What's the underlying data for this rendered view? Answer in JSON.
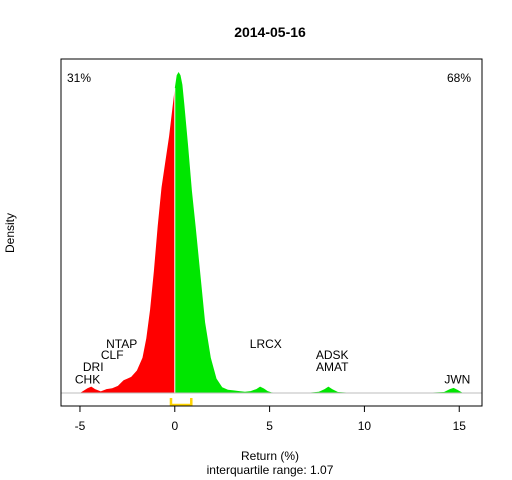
{
  "chart_data": {
    "type": "area",
    "title": "2014-05-16",
    "xlabel": "Return (%)",
    "subtitle": "interquartile range: 1.07",
    "ylabel": "Density",
    "xlim": [
      -6.0,
      16.2
    ],
    "ylim": [
      0,
      1.0
    ],
    "x_ticks": [
      -5,
      0,
      5,
      10,
      15
    ],
    "negative_pct_label": "31%",
    "positive_pct_label": "68%",
    "colors": {
      "negative": "#ff0000",
      "positive": "#00e600",
      "negative_label": "#e00000",
      "positive_label": "#009900",
      "iqr": "#ffd400",
      "baseline": "#bebebe"
    },
    "iqr": [
      -0.2,
      0.87
    ],
    "density": {
      "x": [
        -5.0,
        -4.6,
        -4.4,
        -4.2,
        -3.9,
        -3.6,
        -3.3,
        -3.0,
        -2.7,
        -2.5,
        -2.3,
        -2.0,
        -1.7,
        -1.5,
        -1.3,
        -1.1,
        -0.9,
        -0.7,
        -0.5,
        -0.3,
        -0.1,
        0.0,
        0.1,
        0.2,
        0.3,
        0.4,
        0.5,
        0.7,
        0.9,
        1.1,
        1.3,
        1.6,
        1.9,
        2.2,
        2.5,
        2.8,
        3.1,
        3.4,
        3.7,
        4.0,
        4.3,
        4.5,
        4.7,
        4.9,
        5.1,
        5.4,
        6.0,
        7.0,
        7.6,
        7.9,
        8.1,
        8.3,
        8.6,
        9.5,
        11.0,
        13.0,
        14.2,
        14.5,
        14.7,
        14.9,
        15.2
      ],
      "y": [
        0.0,
        0.015,
        0.02,
        0.012,
        0.005,
        0.012,
        0.015,
        0.022,
        0.04,
        0.045,
        0.05,
        0.07,
        0.11,
        0.17,
        0.26,
        0.38,
        0.52,
        0.64,
        0.72,
        0.8,
        0.9,
        0.95,
        0.99,
        1.0,
        0.99,
        0.96,
        0.9,
        0.77,
        0.63,
        0.52,
        0.4,
        0.22,
        0.11,
        0.045,
        0.018,
        0.01,
        0.008,
        0.006,
        0.004,
        0.006,
        0.012,
        0.02,
        0.014,
        0.006,
        0.002,
        0.001,
        0.001,
        0.001,
        0.004,
        0.012,
        0.02,
        0.012,
        0.003,
        0.0,
        0.0,
        0.0,
        0.003,
        0.012,
        0.016,
        0.01,
        0.0
      ]
    },
    "annotations": [
      {
        "text": "NTAP",
        "x": -2.8,
        "y": 0.14
      },
      {
        "text": "CLF",
        "x": -3.3,
        "y": 0.106
      },
      {
        "text": "DRI",
        "x": -4.3,
        "y": 0.068
      },
      {
        "text": "CHK",
        "x": -4.6,
        "y": 0.03
      },
      {
        "text": "LRCX",
        "x": 4.8,
        "y": 0.14
      },
      {
        "text": "ADSK",
        "x": 8.3,
        "y": 0.106
      },
      {
        "text": "AMAT",
        "x": 8.3,
        "y": 0.068
      },
      {
        "text": "JWN",
        "x": 14.9,
        "y": 0.03
      }
    ]
  }
}
